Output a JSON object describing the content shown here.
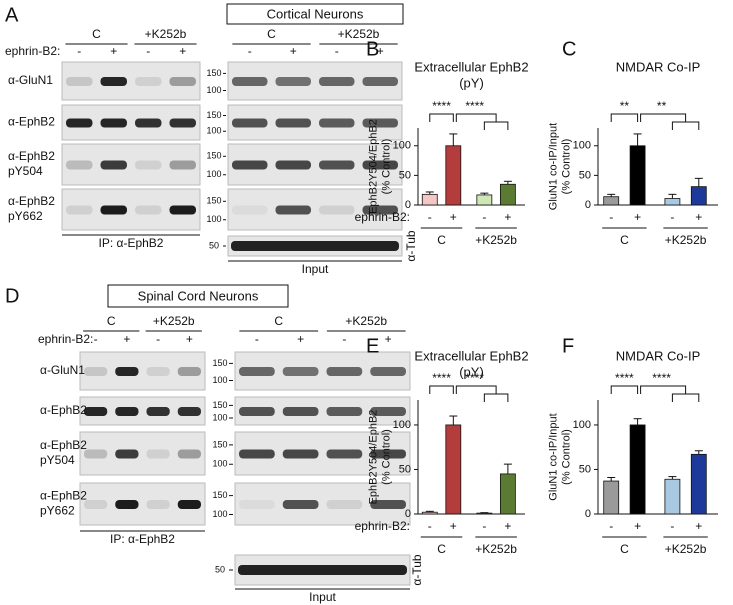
{
  "blot_panels": [
    {
      "label": "A",
      "title": "Cortical Neurons",
      "groups": [
        "C",
        "+K252b",
        "C",
        "+K252b"
      ],
      "treatment": "ephrin-B2:",
      "signs": [
        "-",
        "+",
        "-",
        "+",
        "-",
        "+",
        "-",
        "+"
      ],
      "rows": [
        {
          "name": [
            "α-GluN1"
          ],
          "markers": [
            150,
            100
          ]
        },
        {
          "name": [
            "α-EphB2"
          ],
          "markers": [
            150,
            100
          ]
        },
        {
          "name": [
            "α-EphB2",
            "pY504"
          ],
          "markers": [
            150,
            100
          ]
        },
        {
          "name": [
            "α-EphB2",
            "pY662"
          ],
          "markers": [
            150,
            100
          ]
        }
      ],
      "ip_label": "IP: α-EphB2",
      "input_label": "Input",
      "tub_label": "α-Tub",
      "tub_marker": 50
    },
    {
      "label": "D",
      "title": "Spinal Cord Neurons",
      "groups": [
        "C",
        "+K252b",
        "C",
        "+K252b"
      ],
      "treatment": "ephrin-B2:",
      "signs": [
        "-",
        "+",
        "-",
        "+",
        "-",
        "+",
        "-",
        "+"
      ],
      "rows": [
        {
          "name": [
            "α-GluN1"
          ],
          "markers": [
            150,
            100
          ]
        },
        {
          "name": [
            "α-EphB2"
          ],
          "markers": [
            150,
            100
          ]
        },
        {
          "name": [
            "α-EphB2",
            "pY504"
          ],
          "markers": [
            150,
            100
          ]
        },
        {
          "name": [
            "α-EphB2",
            "pY662"
          ],
          "markers": [
            150,
            100
          ]
        }
      ],
      "ip_label": "IP: α-EphB2",
      "input_label": "Input",
      "tub_label": "α-Tub",
      "tub_marker": 50
    }
  ],
  "chart_data": [
    {
      "type": "bar",
      "panel": "B",
      "title": [
        "Extracellular EphB2",
        "(pY)"
      ],
      "ylabel": [
        "EphB2Y504/EphB2",
        "(% Control)"
      ],
      "categories": [
        "-",
        "+",
        "-",
        "+"
      ],
      "groups": [
        "C",
        "+K252b"
      ],
      "category_axis_label": "ephrin-B2:",
      "values": [
        18,
        100,
        17,
        35
      ],
      "errors": [
        4,
        20,
        3,
        5
      ],
      "colors": [
        "#f4c7c7",
        "#b33d3c",
        "#cfe6b6",
        "#5b7a32"
      ],
      "ylim": [
        0,
        130
      ],
      "yticks": [
        0,
        50,
        100
      ],
      "annotations": [
        "****",
        "****"
      ]
    },
    {
      "type": "bar",
      "panel": "C",
      "title": [
        "NMDAR Co-IP"
      ],
      "ylabel": [
        "GluN1 co-IP/Input",
        "(% Control)"
      ],
      "categories": [
        "-",
        "+",
        "-",
        "+"
      ],
      "groups": [
        "C",
        "+K252b"
      ],
      "values": [
        14,
        100,
        11,
        31
      ],
      "errors": [
        4,
        20,
        7,
        14
      ],
      "colors": [
        "#9a9a9a",
        "#000000",
        "#a9c8e2",
        "#1d3a9a"
      ],
      "ylim": [
        0,
        130
      ],
      "yticks": [
        0,
        50,
        100
      ],
      "annotations": [
        "**",
        "**"
      ]
    },
    {
      "type": "bar",
      "panel": "E",
      "title": [
        "Extracellular EphB2",
        "(pY)"
      ],
      "ylabel": [
        "EphB2Y504/EphB2",
        "(% Control)"
      ],
      "categories": [
        "-",
        "+",
        "-",
        "+"
      ],
      "groups": [
        "C",
        "+K252b"
      ],
      "category_axis_label": "ephrin-B2:",
      "values": [
        2,
        100,
        1,
        45
      ],
      "errors": [
        1,
        10,
        0.5,
        11
      ],
      "colors": [
        "#f4c7c7",
        "#b33d3c",
        "#cfe6b6",
        "#5b7a32"
      ],
      "ylim": [
        0,
        128
      ],
      "yticks": [
        0,
        50,
        100
      ],
      "annotations": [
        "****",
        "****"
      ]
    },
    {
      "type": "bar",
      "panel": "F",
      "title": [
        "NMDAR Co-IP"
      ],
      "ylabel": [
        "GluN1 co-IP/Input",
        "(% Control)"
      ],
      "categories": [
        "-",
        "+",
        "-",
        "+"
      ],
      "groups": [
        "C",
        "+K252b"
      ],
      "values": [
        37,
        100,
        39,
        67
      ],
      "errors": [
        4,
        7,
        3,
        4
      ],
      "colors": [
        "#9a9a9a",
        "#000000",
        "#a9c8e2",
        "#1d3a9a"
      ],
      "ylim": [
        0,
        128
      ],
      "yticks": [
        0,
        50,
        100
      ],
      "annotations": [
        "****",
        "****"
      ]
    }
  ]
}
